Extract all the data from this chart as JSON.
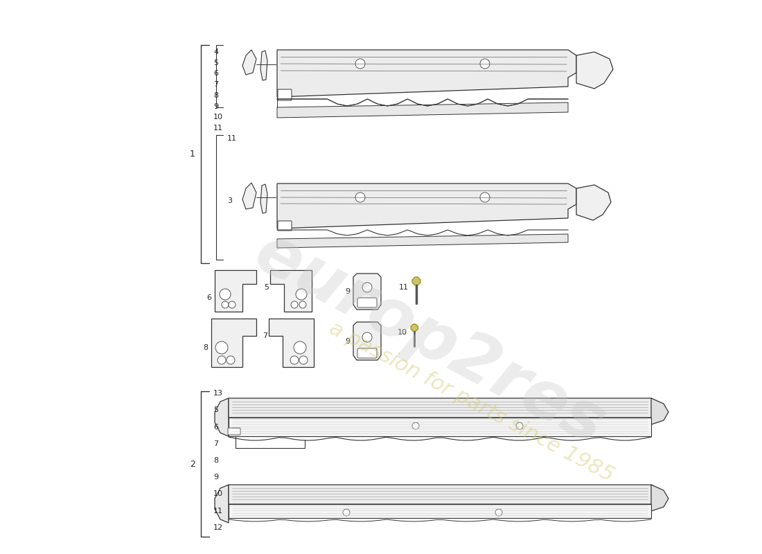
{
  "bg_color": "#ffffff",
  "line_color": "#333333",
  "fill_color": "#f0f0f0",
  "watermark1": "europ2res",
  "watermark2": "a passion for parts since 1985",
  "group1_label": "1",
  "group1_items": [
    "4",
    "5",
    "6",
    "7",
    "8",
    "9",
    "10",
    "11"
  ],
  "group3_label": "3",
  "group3_items": [
    "11",
    "3"
  ],
  "group2_label": "2",
  "group2_items": [
    "13",
    "5",
    "6",
    "7",
    "8",
    "9",
    "10",
    "11",
    "12"
  ],
  "floating_parts": [
    {
      "id": "6",
      "row": 0
    },
    {
      "id": "5",
      "row": 0
    },
    {
      "id": "9",
      "row": 0
    },
    {
      "id": "11",
      "row": 0
    },
    {
      "id": "8",
      "row": 1
    },
    {
      "id": "7",
      "row": 1
    },
    {
      "id": "9",
      "row": 1
    },
    {
      "id": "10",
      "row": 1
    }
  ]
}
